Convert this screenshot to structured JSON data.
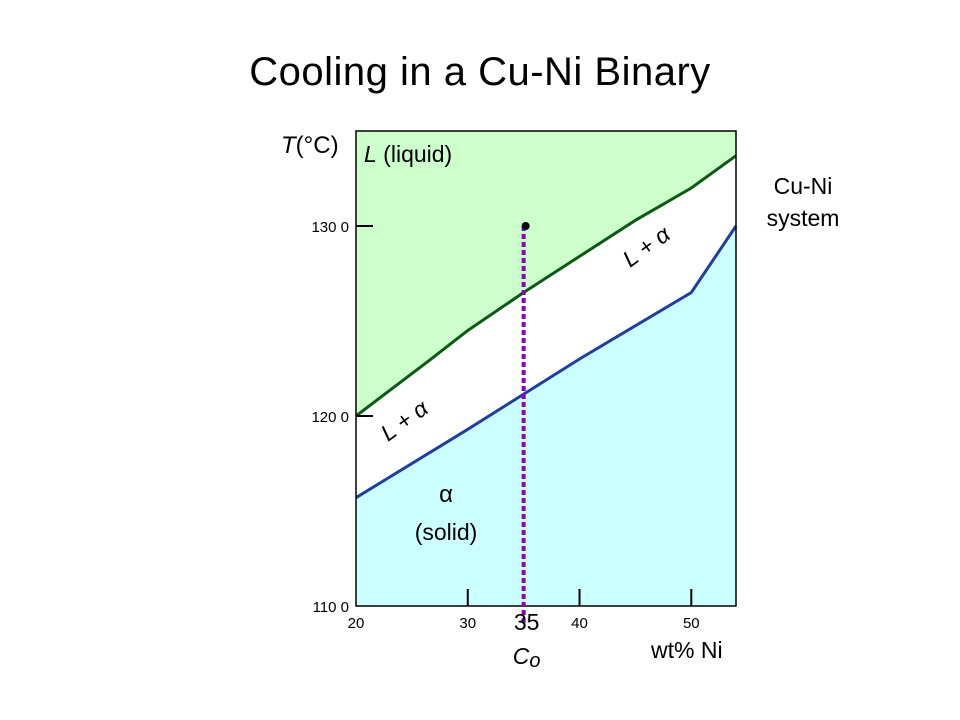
{
  "title": "Cooling in a Cu-Ni Binary",
  "side_label": {
    "line1": "Cu-Ni",
    "line2": "system"
  },
  "chart_data": {
    "type": "area",
    "title": "Cooling in a Cu-Ni Binary",
    "xlabel": "wt% Ni",
    "ylabel_italic": "T",
    "ylabel_unit": "(°C)",
    "xlim": [
      20,
      54
    ],
    "ylim": [
      1100,
      1350
    ],
    "x_ticks": [
      20,
      30,
      40,
      50
    ],
    "x_tick_labels": [
      "20",
      "30",
      "40",
      "50"
    ],
    "y_ticks": [
      1100,
      1200,
      1300
    ],
    "y_tick_labels": [
      "110 0",
      "120 0",
      "130 0"
    ],
    "liquidus": {
      "x": [
        20,
        26.5,
        30,
        35,
        40,
        45,
        50,
        54
      ],
      "y": [
        1200,
        1229,
        1245,
        1265,
        1284,
        1303,
        1320,
        1337
      ]
    },
    "solidus": {
      "x": [
        20,
        30,
        40,
        50,
        54
      ],
      "y": [
        1157,
        1193,
        1230,
        1265,
        1300
      ]
    },
    "regions": {
      "liquid": {
        "label_italic": "L",
        "label_rest": " (liquid)",
        "color": "#ccffcc"
      },
      "two_phase": {
        "label": "L + α",
        "color": "#ffffff"
      },
      "solid": {
        "label_symbol": "α",
        "label_rest": "(solid)",
        "color": "#ccffff"
      }
    },
    "colors": {
      "liquidus": "#0b5a14",
      "solidus": "#1e3f9e",
      "composition_line": "#8a00b3"
    },
    "composition": {
      "x": 35,
      "label": "35",
      "c_label": "C",
      "c_subscript": "o",
      "start_T": 1300
    }
  }
}
